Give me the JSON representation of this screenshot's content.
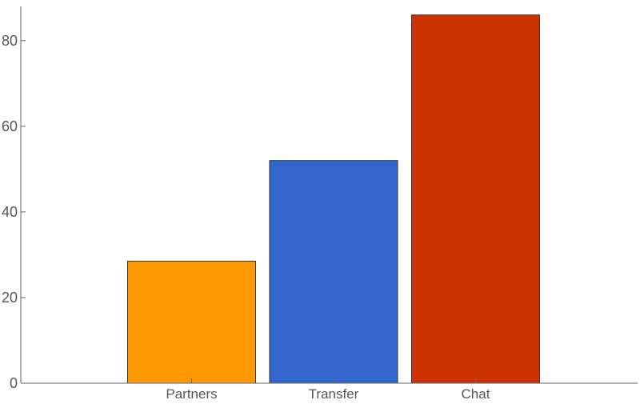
{
  "chart_data": {
    "type": "bar",
    "title": "",
    "xlabel": "",
    "ylabel": "",
    "categories": [
      "Partners",
      "Transfer",
      "Chat"
    ],
    "values": [
      28.5,
      52,
      86
    ],
    "colors": [
      "#FF9900",
      "#3366CC",
      "#CC3300"
    ],
    "ylim": [
      0,
      88
    ],
    "yticks": [
      0,
      20,
      40,
      60,
      80
    ],
    "grid": false,
    "legend": "none"
  }
}
